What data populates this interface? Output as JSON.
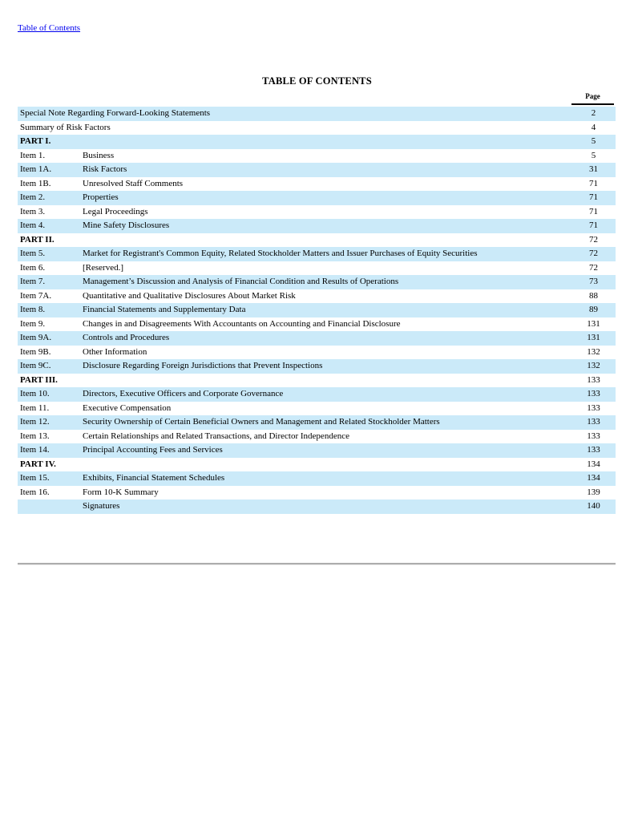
{
  "page": {
    "top_link": "Table of Contents",
    "title": "TABLE OF CONTENTS",
    "page_column_header": "Page"
  },
  "colors": {
    "row_highlight": "#cbeaf9",
    "link": "#0000ee",
    "page_rule": "#000000",
    "bottom_rule": "#adadad"
  },
  "toc": {
    "rows": [
      {
        "item": "Special Note Regarding Forward-Looking Statements",
        "title": "",
        "page": "2",
        "part": false
      },
      {
        "item": "Summary of Risk Factors",
        "title": "",
        "page": "4",
        "part": false
      },
      {
        "item": "PART I.",
        "title": "",
        "page": "5",
        "part": true
      },
      {
        "item": "Item 1.",
        "title": "Business",
        "page": "5",
        "part": false
      },
      {
        "item": "Item 1A.",
        "title": "Risk Factors",
        "page": "31",
        "part": false
      },
      {
        "item": "Item 1B.",
        "title": "Unresolved Staff Comments",
        "page": "71",
        "part": false
      },
      {
        "item": "Item 2.",
        "title": "Properties",
        "page": "71",
        "part": false
      },
      {
        "item": "Item 3.",
        "title": "Legal Proceedings",
        "page": "71",
        "part": false
      },
      {
        "item": "Item 4.",
        "title": "Mine Safety Disclosures",
        "page": "71",
        "part": false
      },
      {
        "item": "PART II.",
        "title": "",
        "page": "72",
        "part": true
      },
      {
        "item": "Item 5.",
        "title": "Market for Registrant's Common Equity, Related Stockholder Matters and Issuer Purchases of Equity Securities",
        "page": "72",
        "part": false
      },
      {
        "item": "Item 6.",
        "title": "[Reserved.]",
        "page": "72",
        "part": false
      },
      {
        "item": "Item 7.",
        "title": "Management’s Discussion and Analysis of Financial Condition and Results of Operations",
        "page": "73",
        "part": false
      },
      {
        "item": "Item 7A.",
        "title": "Quantitative and Qualitative Disclosures About Market Risk",
        "page": "88",
        "part": false
      },
      {
        "item": "Item 8.",
        "title": "Financial Statements and Supplementary Data",
        "page": "89",
        "part": false
      },
      {
        "item": "Item 9.",
        "title": "Changes in and Disagreements With Accountants on Accounting and Financial Disclosure",
        "page": "131",
        "part": false
      },
      {
        "item": "Item 9A.",
        "title": "Controls and Procedures",
        "page": "131",
        "part": false
      },
      {
        "item": "Item 9B.",
        "title": "Other Information",
        "page": "132",
        "part": false
      },
      {
        "item": "Item 9C.",
        "title": "Disclosure Regarding Foreign Jurisdictions that Prevent Inspections",
        "page": "132",
        "part": false
      },
      {
        "item": "PART III.",
        "title": "",
        "page": "133",
        "part": true
      },
      {
        "item": "Item 10.",
        "title": "Directors, Executive Officers and Corporate Governance",
        "page": "133",
        "part": false
      },
      {
        "item": "Item 11.",
        "title": "Executive Compensation",
        "page": "133",
        "part": false
      },
      {
        "item": "Item 12.",
        "title": "Security Ownership of Certain Beneficial Owners and Management and Related Stockholder Matters",
        "page": "133",
        "part": false
      },
      {
        "item": "Item 13.",
        "title": "Certain Relationships and Related Transactions, and Director Independence",
        "page": "133",
        "part": false
      },
      {
        "item": "Item 14.",
        "title": "Principal Accounting Fees and Services",
        "page": "133",
        "part": false
      },
      {
        "item": "PART IV.",
        "title": "",
        "page": "134",
        "part": true
      },
      {
        "item": "Item 15.",
        "title": "Exhibits, Financial Statement Schedules",
        "page": "134",
        "part": false
      },
      {
        "item": "Item 16.",
        "title": "Form 10-K Summary",
        "page": "139",
        "part": false
      },
      {
        "item": "",
        "title": "Signatures",
        "page": "140",
        "part": false
      }
    ]
  }
}
